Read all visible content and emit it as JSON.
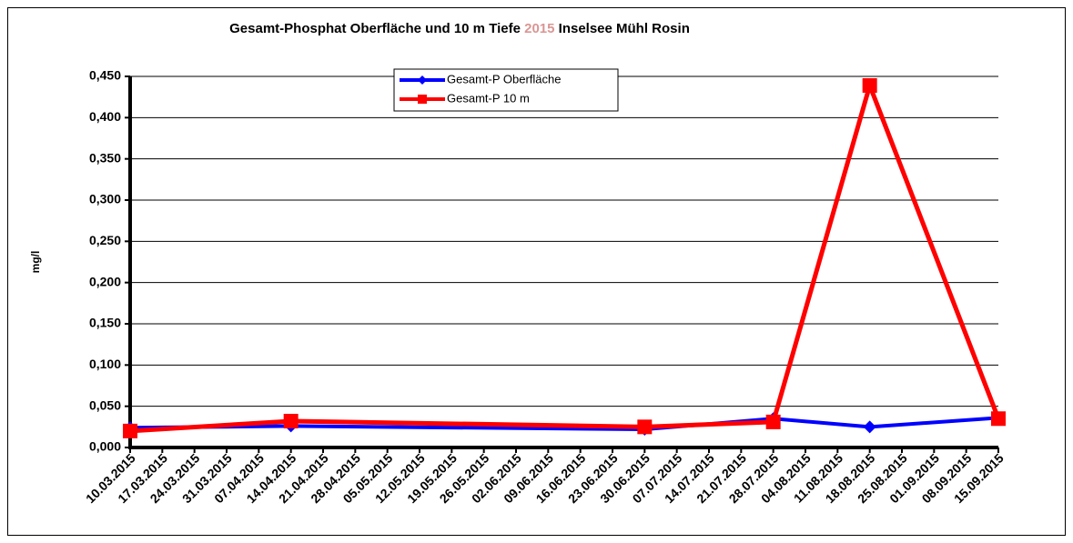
{
  "chart_data": {
    "type": "line",
    "title": [
      "Gesamt-Phosphat Oberfläche  und 10 m Tiefe ",
      "2015",
      " Inselsee Mühl Rosin"
    ],
    "title_colors": [
      "#000000",
      "#d99694",
      "#000000"
    ],
    "y_label": "mg/l",
    "x": [
      "10.03.2015",
      "14.04.2015",
      "30.06.2015",
      "28.07.2015",
      "18.08.2015",
      "15.09.2015"
    ],
    "xlim": [
      "10.03.2015",
      "15.09.2015"
    ],
    "xticks": [
      "10.03.2015",
      "17.03.2015",
      "24.03.2015",
      "31.03.2015",
      "07.04.2015",
      "14.04.2015",
      "21.04.2015",
      "28.04.2015",
      "05.05.2015",
      "12.05.2015",
      "19.05.2015",
      "26.05.2015",
      "02.06.2015",
      "09.06.2015",
      "16.06.2015",
      "23.06.2015",
      "30.06.2015",
      "07.07.2015",
      "14.07.2015",
      "21.07.2015",
      "28.07.2015",
      "04.08.2015",
      "11.08.2015",
      "18.08.2015",
      "25.08.2015",
      "01.09.2015",
      "08.09.2015",
      "15.09.2015"
    ],
    "ylim": [
      0,
      0.45
    ],
    "yticks": [
      {
        "value": 0,
        "label": "0,000"
      },
      {
        "value": 0.05,
        "label": "0,050"
      },
      {
        "value": 0.1,
        "label": "0,100"
      },
      {
        "value": 0.15,
        "label": "0,150"
      },
      {
        "value": 0.2,
        "label": "0,200"
      },
      {
        "value": 0.25,
        "label": "0,250"
      },
      {
        "value": 0.3,
        "label": "0,300"
      },
      {
        "value": 0.35,
        "label": "0,350"
      },
      {
        "value": 0.4,
        "label": "0,400"
      },
      {
        "value": 0.45,
        "label": "0,450"
      }
    ],
    "grid": true,
    "legend": "top",
    "series": [
      {
        "name": "Gesamt-P Oberfläche",
        "color": "#0000ff",
        "marker": "diamond",
        "values": [
          0.024,
          0.026,
          0.022,
          0.035,
          0.025,
          0.036
        ]
      },
      {
        "name": "Gesamt-P 10 m",
        "color": "#ff0000",
        "marker": "square",
        "values": [
          0.02,
          0.032,
          0.025,
          0.031,
          0.439,
          0.035
        ]
      }
    ]
  }
}
